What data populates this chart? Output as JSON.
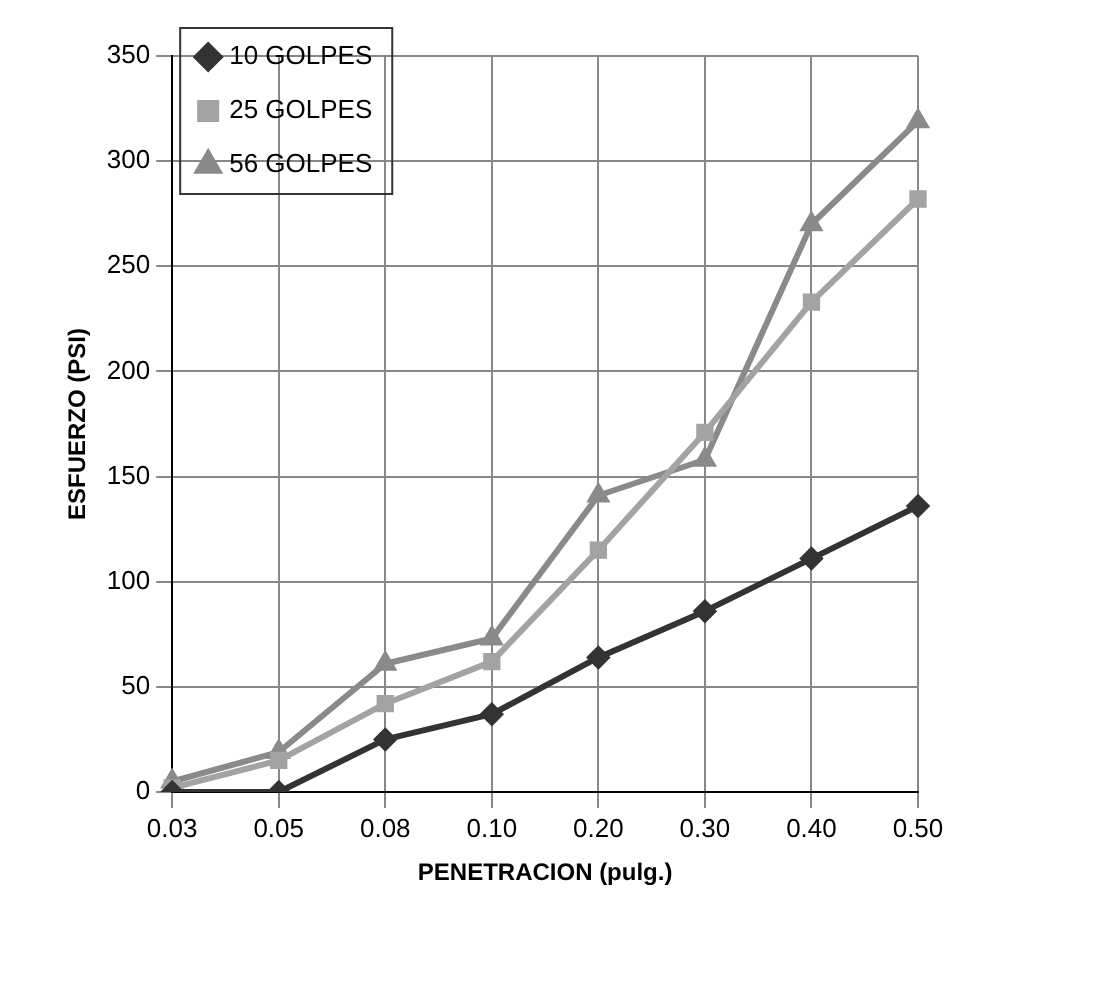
{
  "chart_data": {
    "type": "line",
    "xlabel": "PENETRACION (pulg.)",
    "ylabel": "ESFUERZO (PSI)",
    "categories": [
      "0.03",
      "0.05",
      "0.08",
      "0.10",
      "0.20",
      "0.30",
      "0.40",
      "0.50"
    ],
    "series": [
      {
        "name": "10 GOLPES",
        "color": "#333333",
        "marker": "diamond",
        "values": [
          0,
          0,
          25,
          37,
          64,
          86,
          111,
          136
        ]
      },
      {
        "name": "25 GOLPES",
        "color": "#a3a3a3",
        "marker": "square",
        "values": [
          2,
          15,
          42,
          62,
          115,
          171,
          233,
          282
        ]
      },
      {
        "name": "56 GOLPES",
        "color": "#8a8a8a",
        "marker": "triangle",
        "values": [
          5,
          19,
          61,
          73,
          141,
          158,
          270,
          319
        ]
      }
    ],
    "ylim": [
      0,
      350
    ],
    "yticks": [
      0,
      50,
      100,
      150,
      200,
      250,
      300,
      350
    ],
    "grid": true,
    "legend": "top left"
  }
}
